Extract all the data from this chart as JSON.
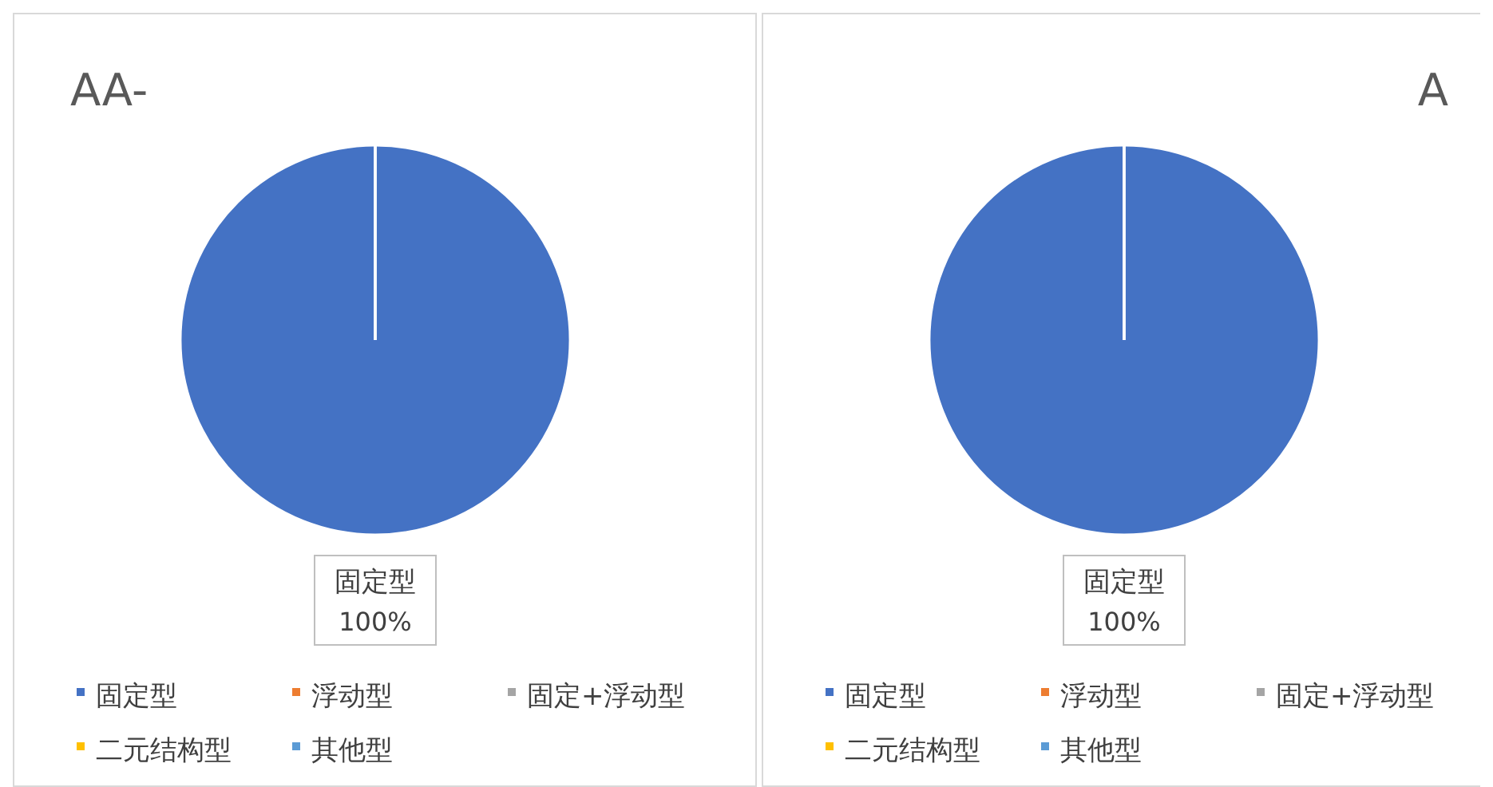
{
  "chart_data": [
    {
      "type": "pie",
      "title": "AA-",
      "categories": [
        "固定型",
        "浮动型",
        "固定+浮动型",
        "二元结构型",
        "其他型"
      ],
      "values": [
        100,
        0,
        0,
        0,
        0
      ],
      "colors": [
        "#4472c4",
        "#ed7d31",
        "#a5a5a5",
        "#ffc000",
        "#5b9bd5"
      ],
      "value_labels": [
        "100%",
        null,
        null,
        null,
        null
      ],
      "legend": "bottom"
    },
    {
      "type": "pie",
      "title": "A",
      "categories": [
        "固定型",
        "浮动型",
        "固定+浮动型",
        "二元结构型",
        "其他型"
      ],
      "values": [
        100,
        0,
        0,
        0,
        0
      ],
      "colors": [
        "#4472c4",
        "#ed7d31",
        "#a5a5a5",
        "#ffc000",
        "#5b9bd5"
      ],
      "value_labels": [
        "100%",
        null,
        null,
        null,
        null
      ],
      "legend": "bottom"
    }
  ]
}
